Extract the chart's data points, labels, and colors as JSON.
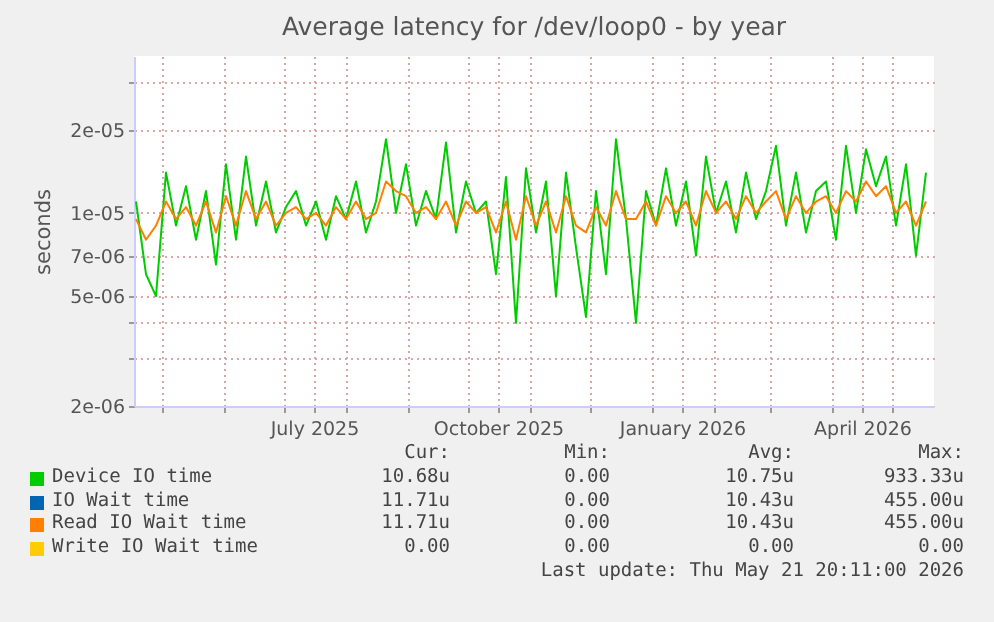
{
  "chart_data": {
    "type": "line",
    "title": "Average latency for /dev/loop0 - by year",
    "ylabel": "seconds",
    "log": true,
    "grid": true,
    "legend": "bottom",
    "xlim": [
      "2025-04-17",
      "2026-05-22"
    ],
    "xticks": [
      {
        "value": "2025-05-01",
        "label": null
      },
      {
        "value": "2025-06-01",
        "label": null
      },
      {
        "value": "2025-07-01",
        "label": null
      },
      {
        "value": "2025-07-16",
        "label": "July 2025"
      },
      {
        "value": "2025-08-01",
        "label": null
      },
      {
        "value": "2025-09-01",
        "label": null
      },
      {
        "value": "2025-10-01",
        "label": null
      },
      {
        "value": "2025-10-16",
        "label": "October 2025"
      },
      {
        "value": "2025-11-01",
        "label": null
      },
      {
        "value": "2025-12-01",
        "label": null
      },
      {
        "value": "2026-01-01",
        "label": null
      },
      {
        "value": "2026-01-16",
        "label": "January 2026"
      },
      {
        "value": "2026-02-01",
        "label": null
      },
      {
        "value": "2026-03-01",
        "label": null
      },
      {
        "value": "2026-04-01",
        "label": null
      },
      {
        "value": "2026-04-16",
        "label": "April 2026"
      },
      {
        "value": "2026-05-01",
        "label": null
      }
    ],
    "ylim": [
      2e-06,
      3.7e-05
    ],
    "yticks": [
      {
        "value": 2e-06,
        "label": "2e-06"
      },
      {
        "value": 3e-06,
        "label": null
      },
      {
        "value": 4e-06,
        "label": null
      },
      {
        "value": 5e-06,
        "label": "5e-06"
      },
      {
        "value": 7e-06,
        "label": "7e-06"
      },
      {
        "value": 1e-05,
        "label": "1e-05"
      },
      {
        "value": 2e-05,
        "label": "2e-05"
      },
      {
        "value": 3e-05,
        "label": null
      }
    ],
    "x": [
      "2025-04-18",
      "2025-04-23",
      "2025-04-28",
      "2025-05-03",
      "2025-05-08",
      "2025-05-13",
      "2025-05-18",
      "2025-05-23",
      "2025-05-28",
      "2025-06-02",
      "2025-06-07",
      "2025-06-12",
      "2025-06-17",
      "2025-06-22",
      "2025-06-27",
      "2025-07-02",
      "2025-07-07",
      "2025-07-12",
      "2025-07-17",
      "2025-07-22",
      "2025-07-27",
      "2025-08-01",
      "2025-08-06",
      "2025-08-11",
      "2025-08-16",
      "2025-08-21",
      "2025-08-26",
      "2025-08-31",
      "2025-09-05",
      "2025-09-10",
      "2025-09-15",
      "2025-09-20",
      "2025-09-25",
      "2025-09-30",
      "2025-10-05",
      "2025-10-10",
      "2025-10-15",
      "2025-10-20",
      "2025-10-25",
      "2025-10-30",
      "2025-11-04",
      "2025-11-09",
      "2025-11-14",
      "2025-11-19",
      "2025-11-24",
      "2025-11-29",
      "2025-12-04",
      "2025-12-09",
      "2025-12-14",
      "2025-12-19",
      "2025-12-24",
      "2025-12-29",
      "2026-01-03",
      "2026-01-08",
      "2026-01-13",
      "2026-01-18",
      "2026-01-23",
      "2026-01-28",
      "2026-02-02",
      "2026-02-07",
      "2026-02-12",
      "2026-02-17",
      "2026-02-22",
      "2026-02-27",
      "2026-03-04",
      "2026-03-09",
      "2026-03-14",
      "2026-03-19",
      "2026-03-24",
      "2026-03-29",
      "2026-04-03",
      "2026-04-08",
      "2026-04-13",
      "2026-04-18",
      "2026-04-23",
      "2026-04-28",
      "2026-05-03",
      "2026-05-08",
      "2026-05-13",
      "2026-05-18"
    ],
    "series": [
      {
        "name": "Device IO time",
        "color": "#00cc00",
        "values": [
          1.1e-05,
          6e-06,
          5e-06,
          1.4e-05,
          9e-06,
          1.25e-05,
          8e-06,
          1.2e-05,
          6.5e-06,
          1.5e-05,
          8e-06,
          1.6e-05,
          9e-06,
          1.3e-05,
          8.5e-06,
          1.05e-05,
          1.2e-05,
          9e-06,
          1.1e-05,
          8e-06,
          1.15e-05,
          9.5e-06,
          1.3e-05,
          8.5e-06,
          1.1e-05,
          1.85e-05,
          1e-05,
          1.5e-05,
          9e-06,
          1.2e-05,
          9.5e-06,
          1.8e-05,
          8.5e-06,
          1.3e-05,
          1e-05,
          1.1e-05,
          6e-06,
          1.35e-05,
          4e-06,
          1.45e-05,
          8.5e-06,
          1.3e-05,
          5e-06,
          1.4e-05,
          7.5e-06,
          4.2e-06,
          1.2e-05,
          6e-06,
          1.85e-05,
          9.5e-06,
          4e-06,
          1.2e-05,
          9e-06,
          1.45e-05,
          9e-06,
          1.3e-05,
          7e-06,
          1.6e-05,
          1e-05,
          1.3e-05,
          8.5e-06,
          1.4e-05,
          9.5e-06,
          1.2e-05,
          1.75e-05,
          9e-06,
          1.4e-05,
          8.5e-06,
          1.2e-05,
          1.3e-05,
          8e-06,
          1.75e-05,
          1e-05,
          1.7e-05,
          1.25e-05,
          1.6e-05,
          9e-06,
          1.5e-05,
          7e-06,
          1.4e-05
        ]
      },
      {
        "name": "IO Wait time",
        "color": "#0066b3",
        "values": [
          null,
          null,
          null,
          null,
          null,
          null,
          null,
          null,
          null,
          null,
          null,
          null,
          null,
          null,
          null,
          null,
          null,
          null,
          null,
          null,
          null,
          null,
          null,
          null,
          null,
          null,
          null,
          null,
          null,
          null,
          null,
          null,
          null,
          null,
          null,
          null,
          null,
          null,
          null,
          null,
          null,
          null,
          null,
          null,
          null,
          null,
          null,
          null,
          null,
          null,
          null,
          null,
          null,
          null,
          null,
          null,
          null,
          null,
          null,
          null,
          null,
          null,
          null,
          null,
          null,
          null,
          null,
          null,
          null,
          null,
          null,
          null,
          null,
          null,
          null,
          null,
          null,
          null,
          null,
          null
        ]
      },
      {
        "name": "Read IO Wait time",
        "color": "#ff8000",
        "values": [
          9.5e-06,
          8e-06,
          9e-06,
          1.1e-05,
          9.5e-06,
          1.05e-05,
          9e-06,
          1.1e-05,
          8.5e-06,
          1.15e-05,
          9e-06,
          1.2e-05,
          9.5e-06,
          1.1e-05,
          9e-06,
          1e-05,
          1.05e-05,
          9.5e-06,
          1e-05,
          9e-06,
          1.05e-05,
          9.5e-06,
          1.1e-05,
          9.5e-06,
          1e-05,
          1.3e-05,
          1.2e-05,
          1.15e-05,
          1e-05,
          1.05e-05,
          9.5e-06,
          1.1e-05,
          9e-06,
          1.1e-05,
          1e-05,
          1.05e-05,
          8.5e-06,
          1.1e-05,
          8e-06,
          1.15e-05,
          9e-06,
          1.1e-05,
          8.5e-06,
          1.15e-05,
          9e-06,
          8.5e-06,
          1.05e-05,
          9e-06,
          1.2e-05,
          9.5e-06,
          9.5e-06,
          1.1e-05,
          9e-06,
          1.15e-05,
          1e-05,
          1.1e-05,
          9e-06,
          1.2e-05,
          1e-05,
          1.1e-05,
          9.5e-06,
          1.15e-05,
          1e-05,
          1.1e-05,
          1.2e-05,
          9.5e-06,
          1.15e-05,
          1e-05,
          1.1e-05,
          1.15e-05,
          1e-05,
          1.2e-05,
          1.1e-05,
          1.3e-05,
          1.15e-05,
          1.25e-05,
          1e-05,
          1.1e-05,
          9e-06,
          1.1e-05
        ]
      },
      {
        "name": "Write IO Wait time",
        "color": "#ffcc00",
        "values": [
          null,
          null,
          null,
          null,
          null,
          null,
          null,
          null,
          null,
          null,
          null,
          null,
          null,
          null,
          null,
          null,
          null,
          null,
          null,
          null,
          null,
          null,
          null,
          null,
          null,
          null,
          null,
          null,
          null,
          null,
          null,
          null,
          null,
          null,
          null,
          null,
          null,
          null,
          null,
          null,
          null,
          null,
          null,
          null,
          null,
          null,
          null,
          null,
          null,
          null,
          null,
          null,
          null,
          null,
          null,
          null,
          null,
          null,
          null,
          null,
          null,
          null,
          null,
          null,
          null,
          null,
          null,
          null,
          null,
          null,
          null,
          null,
          null,
          null,
          null,
          null,
          null,
          null,
          null,
          null
        ]
      }
    ],
    "annotations": [
      "Cur:",
      "Min:",
      "Avg:",
      "Max:",
      "10.68u",
      "0.00",
      "10.75u",
      "933.33u",
      "11.71u",
      "0.00",
      "10.43u",
      "455.00u",
      "11.71u",
      "0.00",
      "10.43u",
      "455.00u",
      "0.00",
      "0.00",
      "0.00",
      "0.00",
      "Last update: Thu May 21 20:11:00 2026"
    ]
  }
}
